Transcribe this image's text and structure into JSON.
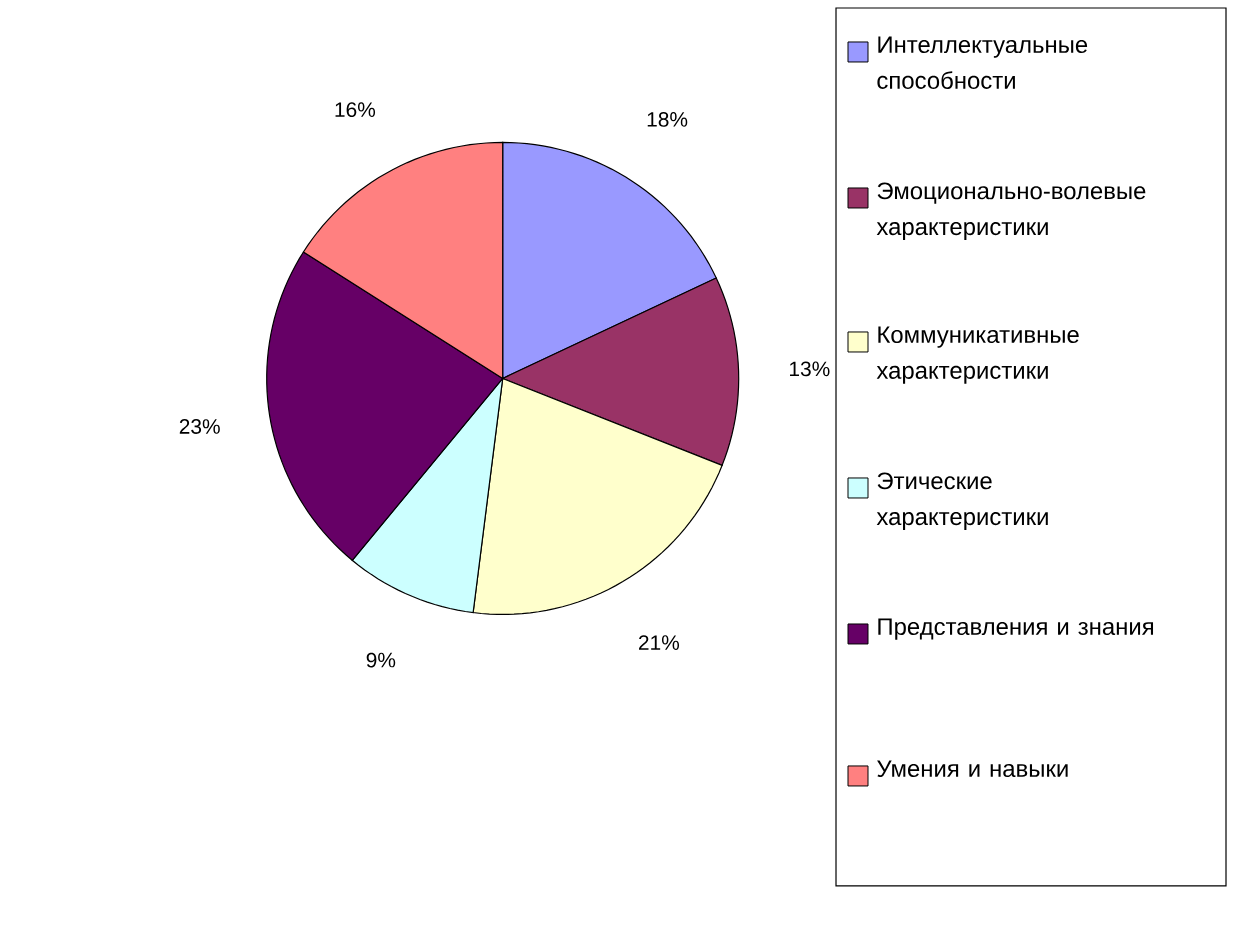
{
  "chart_data": {
    "type": "pie",
    "categories": [
      "Интеллектуальные способности",
      "Эмоционально-волевые характеристики",
      "Коммуникативные характеристики",
      "Этические характеристики",
      "Представления и знания",
      "Умения и навыки"
    ],
    "values": [
      18,
      13,
      21,
      9,
      23,
      16
    ],
    "colors": [
      "#9999ff",
      "#993366",
      "#ffffcc",
      "#ccffff",
      "#660066",
      "#ff8080"
    ],
    "value_labels": [
      "18%",
      "13%",
      "21%",
      "9%",
      "23%",
      "16%"
    ],
    "legend": "right"
  }
}
